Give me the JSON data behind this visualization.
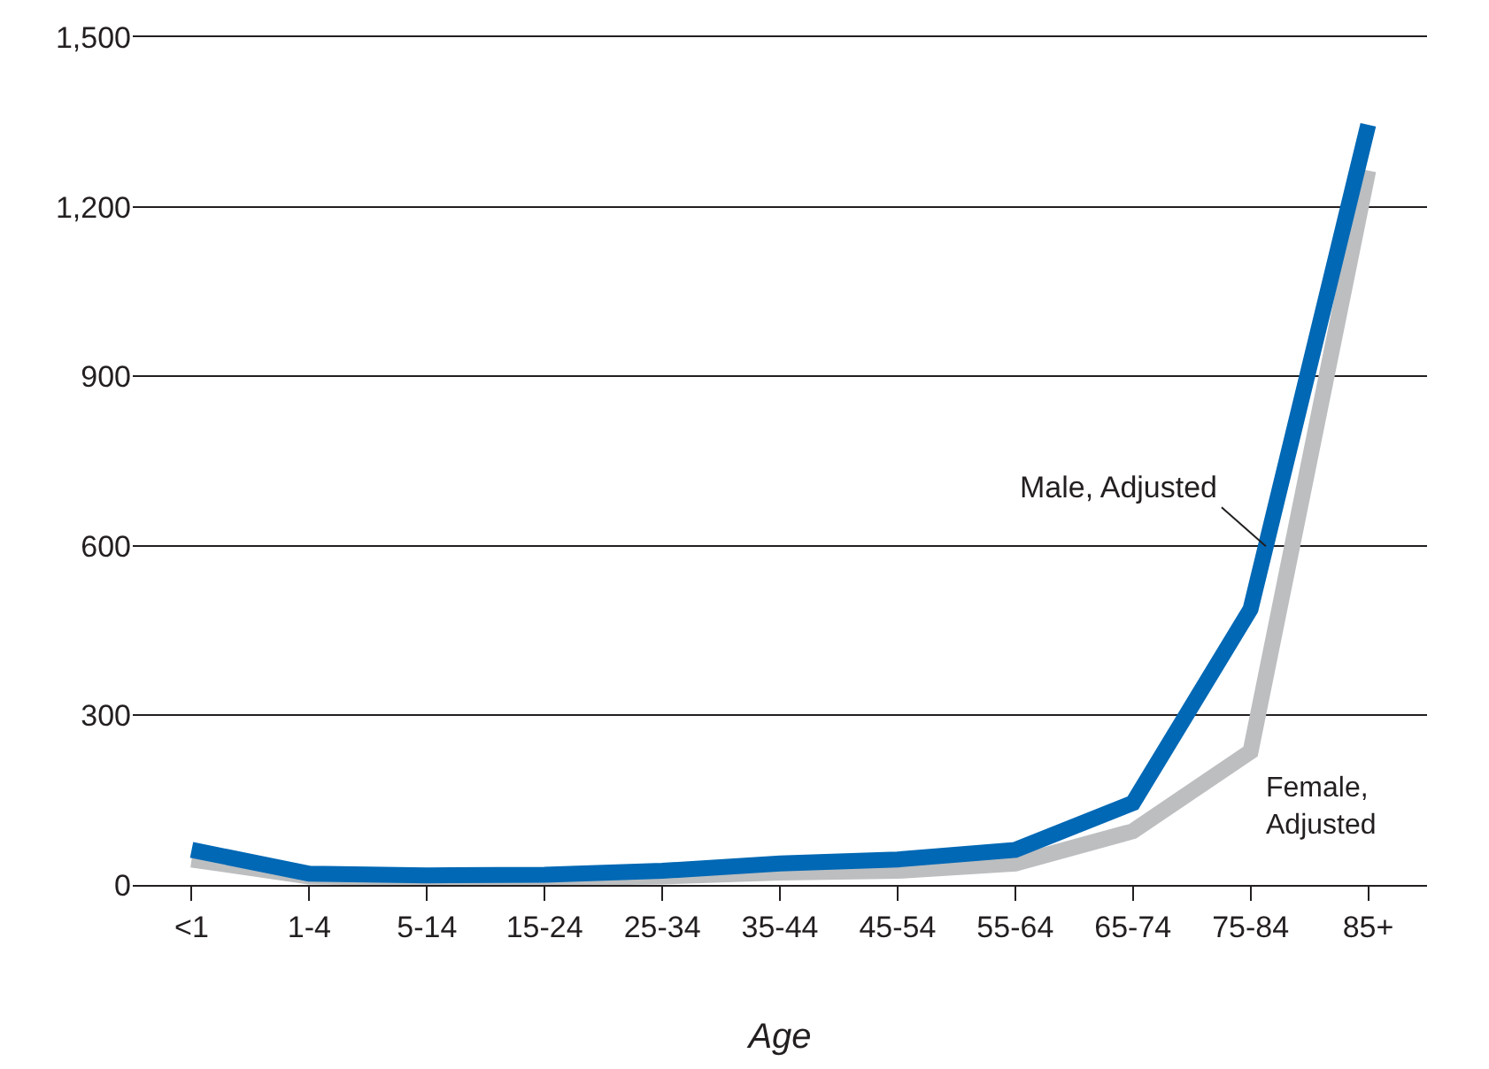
{
  "chart_data": {
    "type": "line",
    "xlabel": "Age",
    "categories": [
      "<1",
      "1-4",
      "5-14",
      "15-24",
      "25-34",
      "35-44",
      "45-54",
      "55-64",
      "65-74",
      "75-84",
      "85+"
    ],
    "series": [
      {
        "name": "Female, Adjusted",
        "color": "#bcbec0",
        "values": [
          45,
          15,
          12,
          12,
          15,
          22,
          25,
          38,
          95,
          236,
          1264
        ]
      },
      {
        "name": "Male, Adjusted",
        "color": "#0068b5",
        "values": [
          62,
          20,
          17,
          18,
          25,
          38,
          45,
          62,
          145,
          488,
          1345
        ]
      }
    ],
    "ylim": [
      0,
      1500
    ],
    "yticks": [
      0,
      300,
      600,
      900,
      {
        "value": 1200,
        "label": "1,200"
      },
      {
        "value": 1500,
        "label": "1,500"
      }
    ],
    "grid": "y",
    "legend": false,
    "marker": "none",
    "line_style": "solid"
  }
}
